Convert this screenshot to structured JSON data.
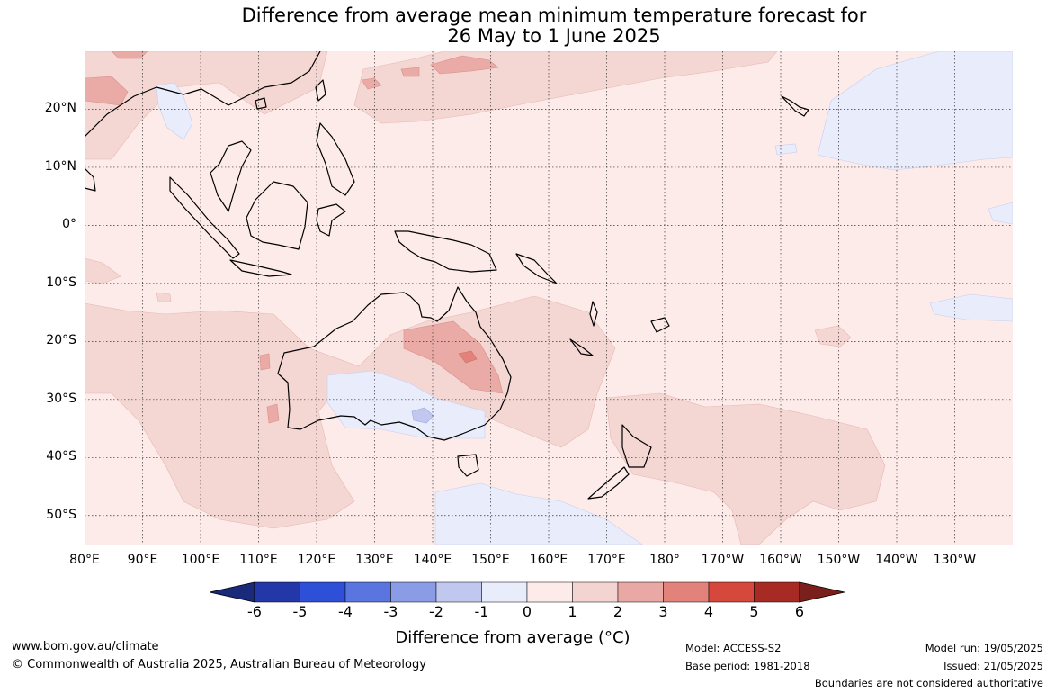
{
  "title": {
    "line1": "Difference from average mean minimum temperature forecast for",
    "line2": "26 May to 1 June 2025"
  },
  "map": {
    "lat_labels": [
      "20°N",
      "10°N",
      "0°",
      "10°S",
      "20°S",
      "30°S",
      "40°S",
      "50°S"
    ],
    "lon_labels": [
      "80°E",
      "90°E",
      "100°E",
      "110°E",
      "120°E",
      "130°E",
      "140°E",
      "150°E",
      "160°E",
      "170°E",
      "180°",
      "170°W",
      "160°W",
      "150°W",
      "140°W",
      "130°W"
    ],
    "extent": {
      "lon_min": 80,
      "lon_max": 240,
      "lat_min": -55,
      "lat_max": 30
    },
    "gridlines": true
  },
  "colorbar": {
    "ticks": [
      "-6",
      "-5",
      "-4",
      "-3",
      "-2",
      "-1",
      "0",
      "1",
      "2",
      "3",
      "4",
      "5",
      "6"
    ],
    "colors": [
      "#1a2a7a",
      "#2437a8",
      "#2e4fd8",
      "#5a74e0",
      "#8a9ce6",
      "#c0c8f0",
      "#e9ecfb",
      "#fcebe8",
      "#f3d4d1",
      "#eaa8a4",
      "#e3827b",
      "#d6473c",
      "#a82a25",
      "#7a1f1c"
    ],
    "label": "Difference from average (°C)"
  },
  "footer": {
    "website": "www.bom.gov.au/climate",
    "copyright": "© Commonwealth of Australia 2025, Australian Bureau of Meteorology",
    "model": "Model: ACCESS-S2",
    "base_period": "Base period: 1981-2018",
    "model_run": "Model run: 19/05/2025",
    "issued": "Issued: 21/05/2025",
    "disclaimer": "Boundaries are not considered authoritative"
  }
}
